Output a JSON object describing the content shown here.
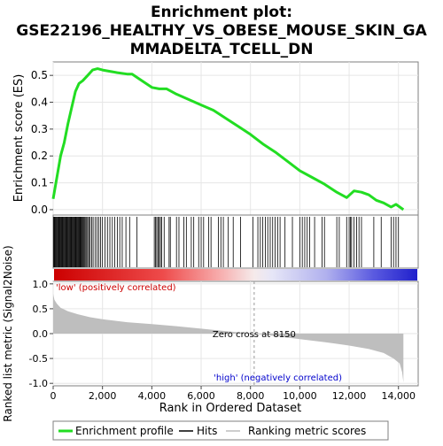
{
  "title_lines": [
    "Enrichment plot:",
    "GSE22196_HEALTHY_VS_OBESE_MOUSE_SKIN_GA",
    "MMADELTA_TCELL_DN"
  ],
  "colors": {
    "es_line": "#22dd22",
    "hit_line": "#000000",
    "metric_fill": "#bebebe",
    "grid": "#e6e6e6",
    "zero_cross": "#999999",
    "pos_label": "#cc0000",
    "neg_label": "#0000cc",
    "bar_pos": "#dd0000",
    "bar_neg": "#3a3adf"
  },
  "chart_data": [
    {
      "type": "line",
      "panel": "enrichment",
      "ylabel": "Enrichment score (ES)",
      "xlim": [
        0,
        14800
      ],
      "ylim": [
        -0.02,
        0.55
      ],
      "yticks": [
        0.0,
        0.1,
        0.2,
        0.3,
        0.4,
        0.5
      ],
      "ytick_labels": [
        "0.0",
        "0.1",
        "0.2",
        "0.3",
        "0.4",
        "0.5"
      ],
      "grid": true,
      "series": [
        {
          "name": "Enrichment profile",
          "x": [
            0,
            150,
            300,
            450,
            600,
            750,
            900,
            1050,
            1200,
            1400,
            1600,
            1800,
            2000,
            2300,
            2600,
            3000,
            3200,
            3600,
            4000,
            4300,
            4600,
            5000,
            5500,
            6000,
            6500,
            7000,
            7500,
            8000,
            8500,
            9000,
            9500,
            10000,
            10500,
            11000,
            11500,
            11900,
            12200,
            12500,
            12800,
            13100,
            13400,
            13700,
            13900,
            14200
          ],
          "y": [
            0.04,
            0.12,
            0.2,
            0.25,
            0.32,
            0.38,
            0.44,
            0.47,
            0.48,
            0.5,
            0.52,
            0.525,
            0.52,
            0.515,
            0.51,
            0.505,
            0.505,
            0.48,
            0.455,
            0.45,
            0.45,
            0.43,
            0.41,
            0.39,
            0.37,
            0.34,
            0.31,
            0.28,
            0.245,
            0.215,
            0.18,
            0.145,
            0.12,
            0.095,
            0.065,
            0.045,
            0.07,
            0.065,
            0.055,
            0.035,
            0.025,
            0.01,
            0.02,
            0.0
          ]
        }
      ]
    },
    {
      "type": "scatter",
      "panel": "hits",
      "label": "Hits",
      "hit_positions": [
        20,
        40,
        70,
        100,
        130,
        160,
        190,
        220,
        250,
        280,
        300,
        330,
        360,
        390,
        420,
        450,
        480,
        510,
        540,
        570,
        600,
        630,
        660,
        690,
        720,
        750,
        780,
        810,
        840,
        870,
        900,
        930,
        960,
        990,
        1020,
        1050,
        1080,
        1110,
        1140,
        1170,
        1200,
        1240,
        1280,
        1320,
        1360,
        1400,
        1450,
        1500,
        1560,
        1620,
        1700,
        1780,
        1850,
        1920,
        2000,
        2100,
        2200,
        2300,
        2400,
        2500,
        2600,
        2700,
        2800,
        2950,
        3100,
        3400,
        4100,
        4150,
        4200,
        4250,
        4300,
        4350,
        4400,
        4500,
        4700,
        4750,
        5000,
        5100,
        5300,
        5400,
        5600,
        5700,
        5900,
        6000,
        6100,
        6300,
        6400,
        6700,
        6800,
        6900,
        7100,
        7300,
        7600,
        8100,
        8300,
        8400,
        8500,
        8600,
        8700,
        8800,
        8900,
        9000,
        9100,
        9200,
        9400,
        9700,
        10000,
        10100,
        10200,
        10300,
        10400,
        10600,
        10900,
        11000,
        11500,
        11600,
        11900,
        12000,
        12050,
        12100,
        12200,
        12300,
        12400,
        12500,
        13000,
        13300,
        13700,
        13800,
        13900,
        14000
      ]
    },
    {
      "type": "area",
      "panel": "ranked_metric",
      "ylabel": "Ranked list metric (Signal2Noise)",
      "xlabel": "Rank in Ordered Dataset",
      "xlim": [
        0,
        14800
      ],
      "ylim": [
        -1.05,
        1.05
      ],
      "yticks": [
        -1.0,
        -0.5,
        0.0,
        0.5,
        1.0
      ],
      "ytick_labels": [
        "-1.0",
        "-0.5",
        "0.0",
        "0.5",
        "1.0"
      ],
      "xticks": [
        0,
        2000,
        4000,
        6000,
        8000,
        10000,
        12000,
        14000
      ],
      "xtick_labels": [
        "0",
        "2,000",
        "4,000",
        "6,000",
        "8,000",
        "10,000",
        "12,000",
        "14,000"
      ],
      "grid": true,
      "x": [
        0,
        50,
        150,
        300,
        600,
        1000,
        1500,
        2000,
        3000,
        4000,
        5000,
        6000,
        7000,
        8150,
        9000,
        10000,
        11000,
        12000,
        12800,
        13400,
        13800,
        14050,
        14150,
        14200
      ],
      "values": [
        0.8,
        0.68,
        0.6,
        0.52,
        0.45,
        0.39,
        0.33,
        0.29,
        0.23,
        0.19,
        0.15,
        0.1,
        0.05,
        0.0,
        -0.05,
        -0.11,
        -0.17,
        -0.24,
        -0.31,
        -0.39,
        -0.5,
        -0.6,
        -0.78,
        -0.98
      ],
      "zero_cross": 8150,
      "zero_cross_label": "Zero cross at 8150",
      "pos_label": "'low' (positively correlated)",
      "neg_label": "'high' (negatively correlated)"
    }
  ],
  "legend": {
    "position": "bottom",
    "items": [
      {
        "label": "Enrichment profile",
        "kind": "es"
      },
      {
        "label": "Hits",
        "kind": "hit"
      },
      {
        "label": "Ranking metric scores",
        "kind": "metric"
      }
    ]
  }
}
